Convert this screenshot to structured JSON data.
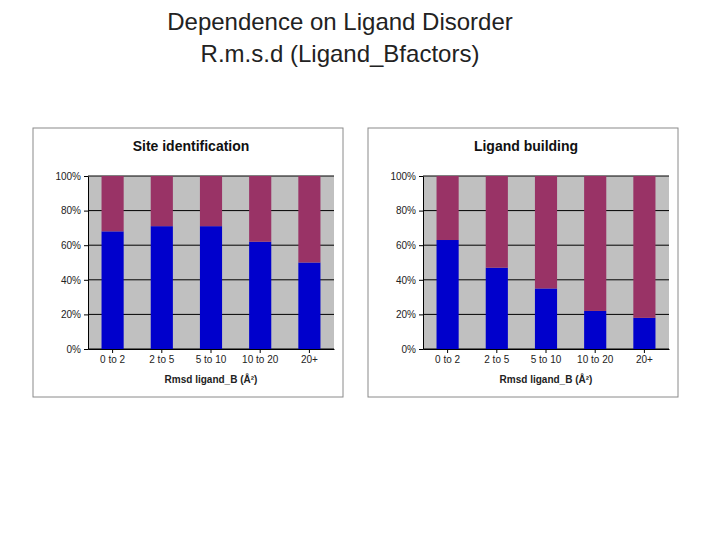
{
  "title_lines": [
    "Dependence on Ligand Disorder",
    "R.m.s.d (Ligand_Bfactors)"
  ],
  "chart_data": [
    {
      "type": "bar",
      "title": "Site identification",
      "x_label": "Rmsd ligand_B (Å²)",
      "categories": [
        "0 to 2",
        "2 to 5",
        "5 to 10",
        "10 to 20",
        "20+"
      ],
      "series": [
        {
          "color": "#0000cc",
          "values": [
            68,
            71,
            71,
            62,
            50
          ]
        },
        {
          "color": "#993366",
          "values": [
            32,
            29,
            29,
            38,
            50
          ]
        }
      ],
      "stacked": true,
      "grid": true,
      "ylim": [
        0,
        100
      ],
      "yticks": [
        {
          "value": 0,
          "label": "0%"
        },
        {
          "value": 20,
          "label": "20%"
        },
        {
          "value": 40,
          "label": "40%"
        },
        {
          "value": 60,
          "label": "60%"
        },
        {
          "value": 80,
          "label": "80%"
        },
        {
          "value": 100,
          "label": "100%"
        }
      ]
    },
    {
      "type": "bar",
      "title": "Ligand building",
      "x_label": "Rmsd ligand_B (Å²)",
      "categories": [
        "0 to 2",
        "2 to 5",
        "5 to 10",
        "10 to 20",
        "20+"
      ],
      "series": [
        {
          "color": "#0000cc",
          "values": [
            63,
            47,
            35,
            22,
            18
          ]
        },
        {
          "color": "#993366",
          "values": [
            37,
            53,
            65,
            78,
            82
          ]
        }
      ],
      "stacked": true,
      "grid": true,
      "ylim": [
        0,
        100
      ],
      "yticks": [
        {
          "value": 0,
          "label": "0%"
        },
        {
          "value": 20,
          "label": "20%"
        },
        {
          "value": 40,
          "label": "40%"
        },
        {
          "value": 60,
          "label": "60%"
        },
        {
          "value": 80,
          "label": "80%"
        },
        {
          "value": 100,
          "label": "100%"
        }
      ]
    }
  ]
}
